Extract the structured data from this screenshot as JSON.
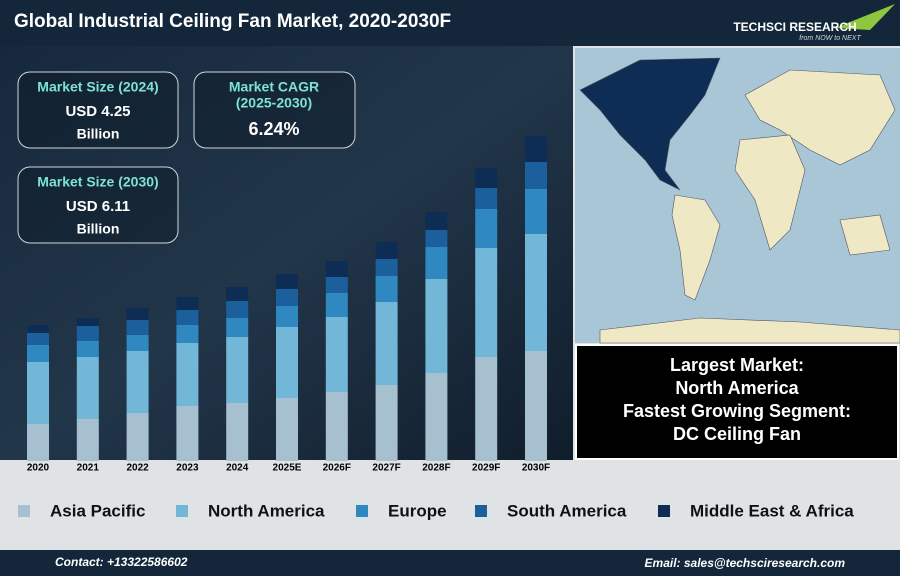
{
  "header": {
    "title": "Global Industrial Ceiling Fan Market, 2020-2030F",
    "logo": "TECHSCI RESEARCH",
    "tagline": "from NOW to NEXT"
  },
  "kpis": [
    {
      "label": "Market Size (2024)",
      "value": "USD 4.25",
      "unit": "Billion"
    },
    {
      "label": "Market CAGR",
      "sublabel": "(2025-2030)",
      "value": "6.24%"
    },
    {
      "label": "Market Size (2030)",
      "value": "USD 6.11",
      "unit": "Billion"
    }
  ],
  "info": [
    "Largest Market:",
    "North America",
    "Fastest Growing Segment:",
    "DC Ceiling Fan"
  ],
  "footer": {
    "contact": "Contact: +13322586602",
    "email": "Email: sales@techsciresearch.com"
  },
  "chart_data": {
    "type": "stacked-bar",
    "categories": [
      "2020",
      "2021",
      "2022",
      "2023",
      "2024",
      "2025E",
      "2026F",
      "2027F",
      "2028F",
      "2029F",
      "2030F"
    ],
    "ylim": [
      0,
      340
    ],
    "series": [
      {
        "name": "Asia Pacific",
        "color": "#a7c0cf",
        "values": [
          37,
          42,
          48,
          55,
          58,
          63,
          69,
          76,
          88,
          104,
          110
        ]
      },
      {
        "name": "North America",
        "color": "#72b6d8",
        "values": [
          62,
          62,
          62,
          63,
          66,
          71,
          75,
          83,
          94,
          109,
          117
        ]
      },
      {
        "name": "Europe",
        "color": "#2f88c0",
        "values": [
          17,
          16,
          16,
          18,
          19,
          21,
          24,
          26,
          32,
          39,
          45
        ]
      },
      {
        "name": "South America",
        "color": "#1b5f9c",
        "values": [
          12,
          15,
          15,
          15,
          17,
          17,
          16,
          17,
          17,
          21,
          27
        ]
      },
      {
        "name": "Middle East & Africa",
        "color": "#0d2d54",
        "values": [
          8,
          8,
          12,
          13,
          14,
          15,
          16,
          17,
          18,
          20,
          26
        ]
      }
    ]
  }
}
